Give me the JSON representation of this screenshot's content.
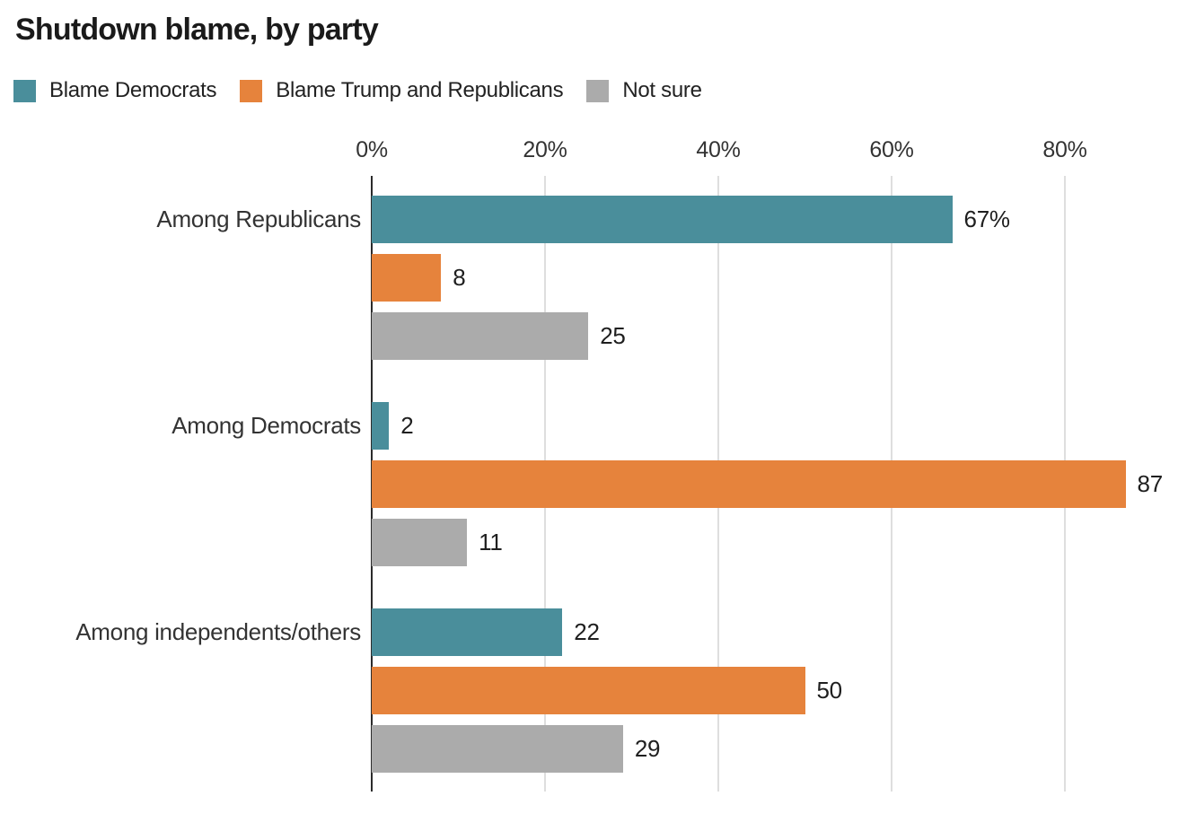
{
  "title": "Shutdown blame, by party",
  "colors": {
    "teal": "#4A8E9B",
    "orange": "#E6833C",
    "gray": "#ABABAB",
    "gridline": "#DEDEDE",
    "axis": "#2B2B2B",
    "text_dark": "#1F1F1F",
    "text_label": "#333333"
  },
  "chart_data": {
    "type": "bar",
    "orientation": "horizontal",
    "title": "Shutdown blame, by party",
    "categories": [
      "Among Republicans",
      "Among Democrats",
      "Among independents/others"
    ],
    "series": [
      {
        "name": "Blame Democrats",
        "color": "#4A8E9B",
        "values": [
          67,
          2,
          22
        ],
        "labels": [
          "67%",
          "2",
          "22"
        ]
      },
      {
        "name": "Blame Trump and Republicans",
        "color": "#E6833C",
        "values": [
          8,
          87,
          50
        ],
        "labels": [
          "8",
          "87",
          "50"
        ]
      },
      {
        "name": "Not sure",
        "color": "#ABABAB",
        "values": [
          25,
          11,
          29
        ],
        "labels": [
          "25",
          "11",
          "29"
        ]
      }
    ],
    "x_ticks": [
      {
        "value": 0,
        "label": "0%"
      },
      {
        "value": 20,
        "label": "20%"
      },
      {
        "value": 40,
        "label": "40%"
      },
      {
        "value": 60,
        "label": "60%"
      },
      {
        "value": 80,
        "label": "80%"
      }
    ],
    "xlim": [
      0,
      94
    ],
    "xlabel": "",
    "ylabel": "",
    "grid": true,
    "legend_position": "top-left"
  }
}
